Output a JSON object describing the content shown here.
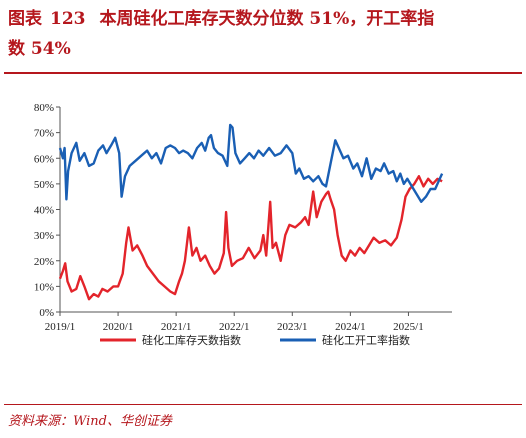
{
  "header": {
    "prefix": "图表",
    "number": "123",
    "title_line1": "本周硅化工库存天数分位数 51%，开工率指",
    "title_line2": "数 54%"
  },
  "source": "资料来源：Wind、华创证券",
  "chart_data": {
    "type": "line",
    "x_tick_labels": [
      "2019/1",
      "2020/1",
      "2021/1",
      "2022/1",
      "2023/1",
      "2024/1",
      "2025/1"
    ],
    "y_tick_labels": [
      "0%",
      "10%",
      "20%",
      "30%",
      "40%",
      "50%",
      "60%",
      "70%",
      "80%"
    ],
    "ylim": [
      0,
      80
    ],
    "xlim": [
      2019.0,
      2025.75
    ],
    "legend_position": "bottom",
    "series": [
      {
        "name": "硅化工库存天数指数",
        "color": "#e3242b",
        "points": [
          [
            2019.0,
            13
          ],
          [
            2019.05,
            16
          ],
          [
            2019.09,
            19
          ],
          [
            2019.13,
            12
          ],
          [
            2019.2,
            8
          ],
          [
            2019.28,
            9
          ],
          [
            2019.35,
            14
          ],
          [
            2019.42,
            10
          ],
          [
            2019.5,
            5
          ],
          [
            2019.58,
            7
          ],
          [
            2019.66,
            6
          ],
          [
            2019.73,
            9
          ],
          [
            2019.82,
            8
          ],
          [
            2019.92,
            10
          ],
          [
            2020.0,
            10
          ],
          [
            2020.08,
            15
          ],
          [
            2020.14,
            27
          ],
          [
            2020.18,
            33
          ],
          [
            2020.25,
            24
          ],
          [
            2020.33,
            26
          ],
          [
            2020.42,
            22
          ],
          [
            2020.5,
            18
          ],
          [
            2020.6,
            15
          ],
          [
            2020.7,
            12
          ],
          [
            2020.8,
            10
          ],
          [
            2020.9,
            8
          ],
          [
            2020.98,
            7
          ],
          [
            2021.05,
            12
          ],
          [
            2021.1,
            15
          ],
          [
            2021.15,
            20
          ],
          [
            2021.22,
            33
          ],
          [
            2021.28,
            22
          ],
          [
            2021.35,
            25
          ],
          [
            2021.42,
            20
          ],
          [
            2021.5,
            22
          ],
          [
            2021.58,
            18
          ],
          [
            2021.66,
            15
          ],
          [
            2021.74,
            17
          ],
          [
            2021.82,
            23
          ],
          [
            2021.86,
            39
          ],
          [
            2021.9,
            25
          ],
          [
            2021.96,
            18
          ],
          [
            2022.05,
            20
          ],
          [
            2022.15,
            21
          ],
          [
            2022.25,
            25
          ],
          [
            2022.35,
            21
          ],
          [
            2022.45,
            24
          ],
          [
            2022.5,
            30
          ],
          [
            2022.55,
            22
          ],
          [
            2022.62,
            43
          ],
          [
            2022.66,
            25
          ],
          [
            2022.72,
            27
          ],
          [
            2022.8,
            20
          ],
          [
            2022.88,
            30
          ],
          [
            2022.95,
            34
          ],
          [
            2023.05,
            33
          ],
          [
            2023.15,
            35
          ],
          [
            2023.22,
            37
          ],
          [
            2023.28,
            34
          ],
          [
            2023.36,
            47
          ],
          [
            2023.42,
            37
          ],
          [
            2023.5,
            43
          ],
          [
            2023.58,
            46
          ],
          [
            2023.62,
            47
          ],
          [
            2023.66,
            44
          ],
          [
            2023.72,
            40
          ],
          [
            2023.78,
            30
          ],
          [
            2023.85,
            22
          ],
          [
            2023.92,
            20
          ],
          [
            2024.0,
            24
          ],
          [
            2024.08,
            22
          ],
          [
            2024.16,
            25
          ],
          [
            2024.24,
            23
          ],
          [
            2024.32,
            26
          ],
          [
            2024.4,
            29
          ],
          [
            2024.5,
            27
          ],
          [
            2024.6,
            28
          ],
          [
            2024.7,
            26
          ],
          [
            2024.8,
            29
          ],
          [
            2024.88,
            36
          ],
          [
            2024.95,
            45
          ],
          [
            2025.02,
            48
          ],
          [
            2025.1,
            50
          ],
          [
            2025.18,
            53
          ],
          [
            2025.26,
            49
          ],
          [
            2025.34,
            52
          ],
          [
            2025.42,
            50
          ],
          [
            2025.5,
            52
          ],
          [
            2025.58,
            51
          ]
        ]
      },
      {
        "name": "硅化工开工率指数",
        "color": "#1a5fb4",
        "points": [
          [
            2019.0,
            64
          ],
          [
            2019.05,
            60
          ],
          [
            2019.08,
            64
          ],
          [
            2019.11,
            44
          ],
          [
            2019.14,
            55
          ],
          [
            2019.2,
            62
          ],
          [
            2019.28,
            66
          ],
          [
            2019.34,
            59
          ],
          [
            2019.42,
            62
          ],
          [
            2019.5,
            57
          ],
          [
            2019.58,
            58
          ],
          [
            2019.66,
            63
          ],
          [
            2019.74,
            65
          ],
          [
            2019.8,
            62
          ],
          [
            2019.88,
            65
          ],
          [
            2019.95,
            68
          ],
          [
            2020.02,
            62
          ],
          [
            2020.06,
            45
          ],
          [
            2020.12,
            53
          ],
          [
            2020.2,
            57
          ],
          [
            2020.3,
            59
          ],
          [
            2020.4,
            61
          ],
          [
            2020.5,
            63
          ],
          [
            2020.58,
            60
          ],
          [
            2020.66,
            62
          ],
          [
            2020.74,
            58
          ],
          [
            2020.82,
            64
          ],
          [
            2020.9,
            65
          ],
          [
            2020.98,
            64
          ],
          [
            2021.05,
            62
          ],
          [
            2021.12,
            63
          ],
          [
            2021.2,
            62
          ],
          [
            2021.28,
            60
          ],
          [
            2021.36,
            64
          ],
          [
            2021.44,
            66
          ],
          [
            2021.5,
            63
          ],
          [
            2021.56,
            68
          ],
          [
            2021.6,
            69
          ],
          [
            2021.65,
            64
          ],
          [
            2021.72,
            62
          ],
          [
            2021.8,
            61
          ],
          [
            2021.88,
            57
          ],
          [
            2021.93,
            73
          ],
          [
            2021.97,
            72
          ],
          [
            2022.02,
            62
          ],
          [
            2022.1,
            58
          ],
          [
            2022.18,
            60
          ],
          [
            2022.26,
            62
          ],
          [
            2022.34,
            60
          ],
          [
            2022.42,
            63
          ],
          [
            2022.5,
            61
          ],
          [
            2022.6,
            64
          ],
          [
            2022.7,
            61
          ],
          [
            2022.8,
            62
          ],
          [
            2022.9,
            65
          ],
          [
            2023.0,
            62
          ],
          [
            2023.06,
            54
          ],
          [
            2023.12,
            56
          ],
          [
            2023.2,
            52
          ],
          [
            2023.28,
            53
          ],
          [
            2023.36,
            51
          ],
          [
            2023.45,
            53
          ],
          [
            2023.52,
            50
          ],
          [
            2023.58,
            49
          ],
          [
            2023.66,
            58
          ],
          [
            2023.74,
            67
          ],
          [
            2023.8,
            64
          ],
          [
            2023.88,
            60
          ],
          [
            2023.96,
            61
          ],
          [
            2024.05,
            56
          ],
          [
            2024.12,
            58
          ],
          [
            2024.2,
            53
          ],
          [
            2024.28,
            60
          ],
          [
            2024.36,
            52
          ],
          [
            2024.44,
            56
          ],
          [
            2024.52,
            55
          ],
          [
            2024.58,
            58
          ],
          [
            2024.66,
            54
          ],
          [
            2024.74,
            55
          ],
          [
            2024.8,
            51
          ],
          [
            2024.86,
            54
          ],
          [
            2024.92,
            50
          ],
          [
            2024.98,
            52
          ],
          [
            2025.06,
            49
          ],
          [
            2025.14,
            46
          ],
          [
            2025.22,
            43
          ],
          [
            2025.3,
            45
          ],
          [
            2025.38,
            48
          ],
          [
            2025.46,
            48
          ],
          [
            2025.52,
            51
          ],
          [
            2025.58,
            54
          ]
        ]
      }
    ]
  }
}
